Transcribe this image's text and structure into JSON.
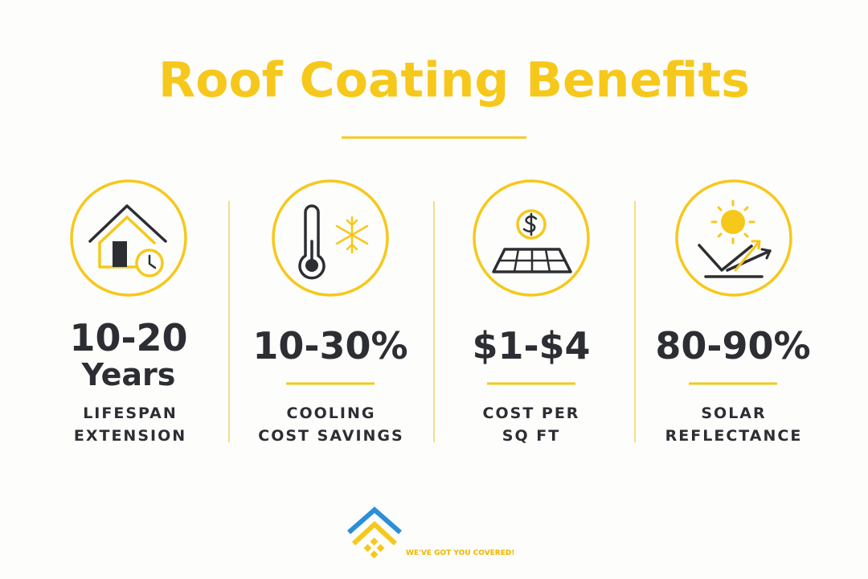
{
  "header": {
    "title": "Roof Coating Benefits"
  },
  "stats": [
    {
      "value": [
        "10-20",
        "Years"
      ],
      "label": [
        "LIFESPAN",
        "EXTENSION"
      ]
    },
    {
      "value": [
        "10-30%"
      ],
      "label": [
        "COOLING",
        "COST SAVINGS"
      ]
    },
    {
      "value": [
        "$1-$4"
      ],
      "label": [
        "COST PER",
        "SQ FT"
      ]
    },
    {
      "value": [
        "80-90%"
      ],
      "label": [
        "SOLAR",
        "REFLECTANCE"
      ]
    }
  ],
  "footer": {
    "tagline": "WE'VE GOT YOU COVERED!"
  }
}
